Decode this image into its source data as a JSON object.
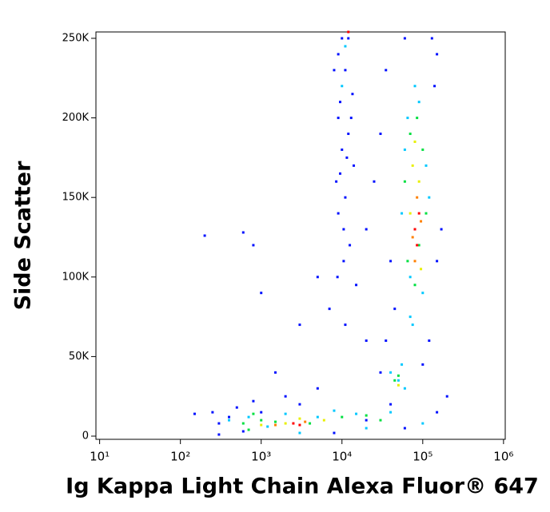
{
  "chart_data": {
    "type": "scatter",
    "x_label": "Ig Kappa Light Chain Alexa Fluor® 647",
    "y_label": "Side Scatter",
    "xscale": "log",
    "xlim": [
      9,
      1050000
    ],
    "ylim": [
      -2000,
      254000
    ],
    "xticks": [
      {
        "value": 10,
        "label": "10¹"
      },
      {
        "value": 100,
        "label": "10²"
      },
      {
        "value": 1000,
        "label": "10³"
      },
      {
        "value": 10000,
        "label": "10⁴"
      },
      {
        "value": 100000,
        "label": "10⁵"
      },
      {
        "value": 1000000,
        "label": "10⁶"
      }
    ],
    "yticks": [
      0,
      {
        "value": 50000,
        "label": "50K"
      },
      {
        "value": 100000,
        "label": "100K"
      },
      {
        "value": 150000,
        "label": "150K"
      },
      {
        "value": 200000,
        "label": "200K"
      },
      {
        "value": 250000,
        "label": "250K"
      }
    ],
    "series": [
      {
        "color": "#0010ff",
        "x": [
          250,
          400,
          600,
          300,
          150,
          500,
          800,
          2000,
          3000,
          5000,
          20000,
          1500,
          3000,
          800,
          600,
          200,
          1000,
          5000,
          7000,
          9000,
          11000,
          12000,
          9500,
          13000,
          10000,
          8500,
          14000,
          11000,
          9000,
          12500,
          10500,
          15000,
          20000,
          25000,
          30000,
          35000,
          40000,
          60000,
          130000,
          150000,
          40000,
          20000,
          60000,
          150000,
          200000,
          100000,
          120000,
          150000,
          170000,
          140000,
          45000,
          35000,
          30000,
          8000,
          300,
          1000,
          10000,
          9000,
          12000,
          8000,
          13500,
          11500,
          9500,
          10500,
          8800,
          11000
        ],
        "y": [
          15000,
          12000,
          3000,
          8000,
          14000,
          18000,
          22000,
          25000,
          20000,
          30000,
          60000,
          40000,
          70000,
          120000,
          128000,
          126000,
          90000,
          100000,
          80000,
          240000,
          230000,
          250000,
          210000,
          200000,
          180000,
          160000,
          170000,
          150000,
          140000,
          120000,
          110000,
          95000,
          130000,
          160000,
          190000,
          230000,
          110000,
          250000,
          250000,
          240000,
          20000,
          10000,
          5000,
          15000,
          25000,
          45000,
          60000,
          110000,
          130000,
          220000,
          80000,
          60000,
          40000,
          2000,
          1000,
          15000,
          250000,
          200000,
          190000,
          230000,
          215000,
          175000,
          165000,
          130000,
          100000,
          70000
        ]
      },
      {
        "color": "#00c8ff",
        "x": [
          700,
          1200,
          400,
          2000,
          5000,
          8000,
          15000,
          40000,
          100000,
          50000,
          40000,
          55000,
          60000,
          70000,
          65000,
          90000,
          80000,
          60000,
          110000,
          100000,
          70000,
          120000,
          55000,
          75000,
          11000,
          10000,
          20000,
          3000
        ],
        "y": [
          12000,
          6000,
          10000,
          14000,
          12000,
          16000,
          14000,
          15000,
          8000,
          35000,
          40000,
          45000,
          30000,
          75000,
          200000,
          210000,
          220000,
          180000,
          170000,
          90000,
          100000,
          150000,
          140000,
          70000,
          245000,
          220000,
          5000,
          2000
        ]
      },
      {
        "color": "#00e040",
        "x": [
          600,
          800,
          1000,
          1500,
          4000,
          10000,
          30000,
          45000,
          50000,
          60000,
          70000,
          100000,
          90000,
          65000,
          80000,
          85000,
          110000,
          20000,
          700
        ],
        "y": [
          8000,
          14000,
          10000,
          9000,
          8000,
          12000,
          10000,
          35000,
          38000,
          160000,
          190000,
          180000,
          120000,
          110000,
          95000,
          200000,
          140000,
          13000,
          4000
        ]
      },
      {
        "color": "#e8f000",
        "x": [
          1000,
          2000,
          6000,
          75000,
          90000,
          70000,
          95000,
          80000,
          50000,
          3000
        ],
        "y": [
          7000,
          8000,
          10000,
          170000,
          160000,
          140000,
          105000,
          185000,
          32000,
          11000
        ]
      },
      {
        "color": "#ff8000",
        "x": [
          1500,
          3500,
          85000,
          75000,
          95000,
          80000
        ],
        "y": [
          7000,
          9000,
          150000,
          125000,
          135000,
          110000
        ]
      },
      {
        "color": "#ff0000",
        "x": [
          2500,
          3000,
          90000,
          80000,
          85000,
          12000
        ],
        "y": [
          8000,
          7000,
          140000,
          130000,
          120000,
          254000
        ]
      }
    ]
  }
}
